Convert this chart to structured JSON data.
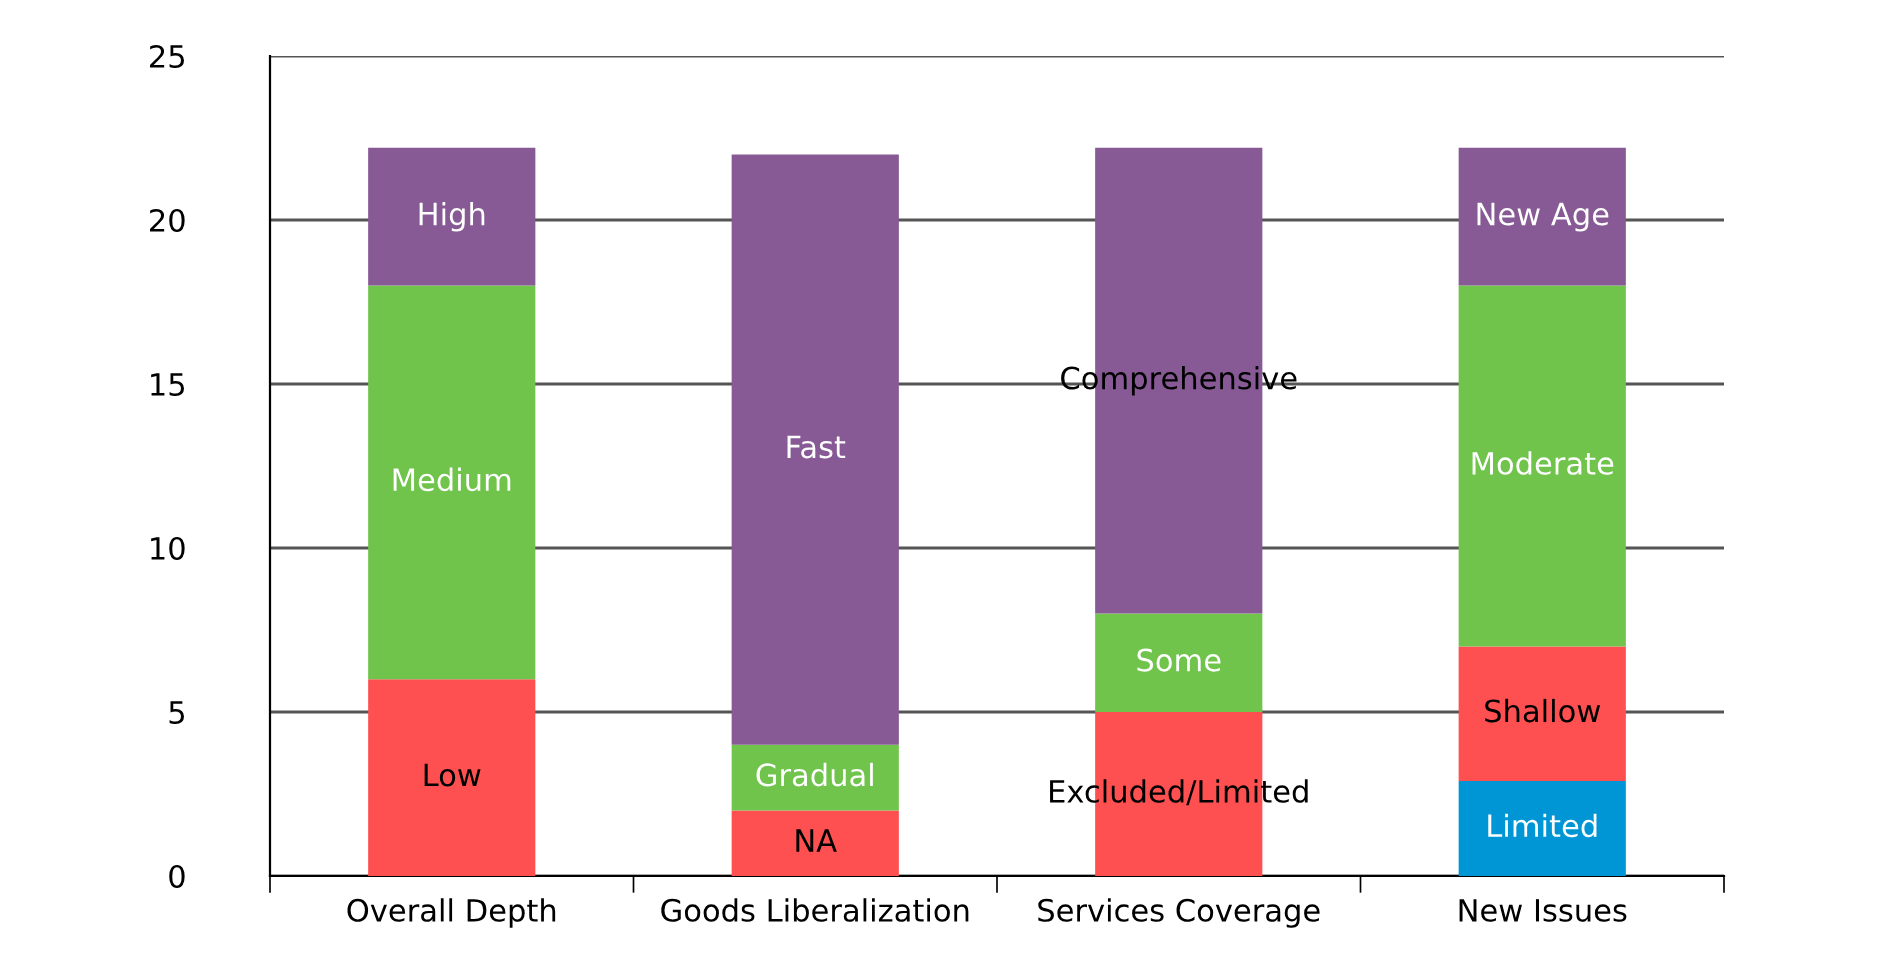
{
  "chart_data": {
    "type": "bar",
    "stacked": true,
    "categories": [
      "Overall Depth",
      "Goods Liberalization",
      "Services Coverage",
      "New Issues"
    ],
    "series": [
      {
        "colors": [
          "#fe5050",
          "#fe5050",
          "#fe5050",
          "#0096d6"
        ],
        "values": [
          6,
          2,
          5,
          2.9
        ],
        "value_labels": [
          "Low",
          "NA",
          "Excluded/Limited",
          "Limited"
        ]
      },
      {
        "colors": [
          "#70c44c",
          "#70c44c",
          "#70c44c",
          "#fe5050"
        ],
        "values": [
          12,
          2,
          3,
          4.1
        ],
        "value_labels": [
          "Medium",
          "Gradual",
          "Some",
          "Shallow"
        ]
      },
      {
        "colors": [
          "#875a96",
          "#875a96",
          "#875a96",
          "#70c44c"
        ],
        "values": [
          4.2,
          18,
          14.2,
          11
        ],
        "value_labels": [
          "High",
          "Fast",
          "Comprehensive",
          "Moderate"
        ]
      },
      {
        "colors": [
          null,
          null,
          null,
          "#875a96"
        ],
        "values": [
          null,
          null,
          null,
          4.2
        ],
        "value_labels": [
          null,
          null,
          null,
          "New Age"
        ]
      }
    ],
    "ylim": [
      0,
      25
    ],
    "yticks": [
      0,
      5,
      10,
      15,
      20,
      25
    ],
    "grid": "y",
    "legend": false
  }
}
